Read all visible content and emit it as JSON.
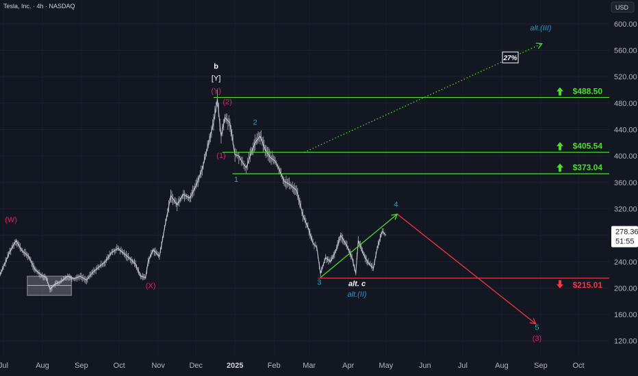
{
  "header": {
    "symbol_title": "Tesla, Inc. · 4h · NASDAQ",
    "currency_badge": "USD"
  },
  "colors": {
    "background": "#131722",
    "candle": "#d1d4dc",
    "level_green": "#4cdd2c",
    "level_red": "#f23645",
    "wave_magenta": "#e91e63",
    "wave_teal": "#26a6bd",
    "wave_white": "#ffffff",
    "alt_blue": "#2f96c8"
  },
  "price_tag": {
    "price": "278.36",
    "countdown": "51:55",
    "value": 278.36
  },
  "percent_box": "27%",
  "chart_data": {
    "type": "line",
    "title": "",
    "y_axis": {
      "ylim": [
        98,
        636
      ],
      "ticks": [
        120,
        160,
        200,
        240,
        280,
        320,
        360,
        400,
        440,
        480,
        520,
        560,
        600
      ],
      "tick_labels": [
        "120.00",
        "160.00",
        "200.00",
        "240.00",
        "",
        "320.00",
        "360.00",
        "400.00",
        "440.00",
        "480.00",
        "520.00",
        "560.00",
        "600.00"
      ]
    },
    "x_axis": {
      "xlim": [
        "2024-07-01",
        "2025-10-20"
      ],
      "ticks": [
        {
          "date": "2024-07-01",
          "label": "Jul",
          "bold": false
        },
        {
          "date": "2024-08-01",
          "label": "Aug",
          "bold": false
        },
        {
          "date": "2024-09-01",
          "label": "Sep",
          "bold": false
        },
        {
          "date": "2024-10-01",
          "label": "Oct",
          "bold": false
        },
        {
          "date": "2024-11-01",
          "label": "Nov",
          "bold": false
        },
        {
          "date": "2024-12-01",
          "label": "Dec",
          "bold": false
        },
        {
          "date": "2025-01-01",
          "label": "2025",
          "bold": true
        },
        {
          "date": "2025-02-01",
          "label": "Feb",
          "bold": false
        },
        {
          "date": "2025-03-01",
          "label": "Mar",
          "bold": false
        },
        {
          "date": "2025-04-01",
          "label": "Apr",
          "bold": false
        },
        {
          "date": "2025-05-01",
          "label": "May",
          "bold": false
        },
        {
          "date": "2025-06-01",
          "label": "Jun",
          "bold": false
        },
        {
          "date": "2025-07-01",
          "label": "Jul",
          "bold": false
        },
        {
          "date": "2025-08-01",
          "label": "Aug",
          "bold": false
        },
        {
          "date": "2025-09-01",
          "label": "Sep",
          "bold": false
        },
        {
          "date": "2025-10-01",
          "label": "Oct",
          "bold": false
        }
      ]
    },
    "price_series": {
      "name": "",
      "points": [
        [
          "2024-06-23",
          196
        ],
        [
          "2024-07-01",
          232
        ],
        [
          "2024-07-06",
          255
        ],
        [
          "2024-07-11",
          272
        ],
        [
          "2024-07-16",
          256
        ],
        [
          "2024-07-21",
          248
        ],
        [
          "2024-07-26",
          228
        ],
        [
          "2024-07-31",
          220
        ],
        [
          "2024-08-04",
          216
        ],
        [
          "2024-08-07",
          198
        ],
        [
          "2024-08-11",
          206
        ],
        [
          "2024-08-16",
          210
        ],
        [
          "2024-08-21",
          218
        ],
        [
          "2024-08-26",
          214
        ],
        [
          "2024-08-31",
          218
        ],
        [
          "2024-09-05",
          212
        ],
        [
          "2024-09-10",
          224
        ],
        [
          "2024-09-15",
          232
        ],
        [
          "2024-09-20",
          240
        ],
        [
          "2024-09-25",
          254
        ],
        [
          "2024-09-30",
          260
        ],
        [
          "2024-10-05",
          252
        ],
        [
          "2024-10-10",
          244
        ],
        [
          "2024-10-14",
          236
        ],
        [
          "2024-10-18",
          218
        ],
        [
          "2024-10-22",
          216
        ],
        [
          "2024-10-24",
          240
        ],
        [
          "2024-10-28",
          258
        ],
        [
          "2024-11-02",
          248
        ],
        [
          "2024-11-06",
          290
        ],
        [
          "2024-11-11",
          340
        ],
        [
          "2024-11-16",
          326
        ],
        [
          "2024-11-21",
          342
        ],
        [
          "2024-11-26",
          336
        ],
        [
          "2024-12-01",
          355
        ],
        [
          "2024-12-06",
          380
        ],
        [
          "2024-12-11",
          420
        ],
        [
          "2024-12-15",
          450
        ],
        [
          "2024-12-18",
          486
        ],
        [
          "2024-12-21",
          430
        ],
        [
          "2024-12-24",
          458
        ],
        [
          "2024-12-28",
          450
        ],
        [
          "2025-01-01",
          402
        ],
        [
          "2025-01-04",
          400
        ],
        [
          "2025-01-07",
          390
        ],
        [
          "2025-01-10",
          382
        ],
        [
          "2025-01-13",
          400
        ],
        [
          "2025-01-17",
          420
        ],
        [
          "2025-01-21",
          430
        ],
        [
          "2025-01-25",
          410
        ],
        [
          "2025-01-29",
          398
        ],
        [
          "2025-02-02",
          392
        ],
        [
          "2025-02-05",
          380
        ],
        [
          "2025-02-09",
          362
        ],
        [
          "2025-02-14",
          356
        ],
        [
          "2025-02-19",
          348
        ],
        [
          "2025-02-24",
          310
        ],
        [
          "2025-02-28",
          292
        ],
        [
          "2025-03-04",
          268
        ],
        [
          "2025-03-07",
          262
        ],
        [
          "2025-03-10",
          222
        ],
        [
          "2025-03-14",
          246
        ],
        [
          "2025-03-18",
          240
        ],
        [
          "2025-03-22",
          256
        ],
        [
          "2025-03-26",
          280
        ],
        [
          "2025-03-31",
          264
        ],
        [
          "2025-04-04",
          246
        ],
        [
          "2025-04-07",
          222
        ],
        [
          "2025-04-09",
          272
        ],
        [
          "2025-04-13",
          252
        ],
        [
          "2025-04-17",
          238
        ],
        [
          "2025-04-21",
          230
        ],
        [
          "2025-04-24",
          260
        ],
        [
          "2025-04-28",
          286
        ],
        [
          "2025-05-01",
          280
        ]
      ]
    },
    "horizontal_levels": [
      {
        "label": "$488.50",
        "value": 488.5,
        "direction": "up",
        "color": "#4cdd2c",
        "from": "2024-12-15"
      },
      {
        "label": "$405.54",
        "value": 405.54,
        "direction": "up",
        "color": "#4cdd2c",
        "from": "2024-12-22"
      },
      {
        "label": "$373.04",
        "value": 373.04,
        "direction": "up",
        "color": "#4cdd2c",
        "from": "2024-12-30"
      },
      {
        "label": "$215.01",
        "value": 215.01,
        "direction": "down",
        "color": "#f23645",
        "from": "2025-03-08"
      }
    ],
    "trend_lines": [
      {
        "from": [
          "2025-03-10",
          216
        ],
        "to": [
          "2025-05-10",
          312
        ],
        "color": "#4cdd2c",
        "style": "solid",
        "arrow": true
      },
      {
        "from": [
          "2025-05-10",
          312
        ],
        "to": [
          "2025-08-28",
          146
        ],
        "color": "#f23645",
        "style": "solid",
        "arrow": true
      },
      {
        "from": [
          "2025-02-25",
          405.5
        ],
        "to": [
          "2025-09-02",
          570
        ],
        "color": "#4cdd2c",
        "style": "dotted",
        "arrow": true
      }
    ],
    "boxes": [
      {
        "from": "2024-07-20",
        "to": "2024-08-24",
        "y_top": 218,
        "y_bottom": 189,
        "mid": 204
      }
    ],
    "wave_labels": [
      {
        "text": "(W)",
        "date": "2024-07-07",
        "price": 300,
        "color": "#e91e63",
        "style": "normal"
      },
      {
        "text": "(X)",
        "date": "2024-10-26",
        "price": 200,
        "color": "#e91e63",
        "style": "normal"
      },
      {
        "text": "b",
        "date": "2024-12-17",
        "price": 532,
        "color": "#ffffff",
        "style": "normal"
      },
      {
        "text": "[Y]",
        "date": "2024-12-17",
        "price": 514,
        "color": "#ffffff",
        "style": "normal"
      },
      {
        "text": "(Y)",
        "date": "2024-12-17",
        "price": 495,
        "color": "#e91e63",
        "style": "normal"
      },
      {
        "text": "(2)",
        "date": "2024-12-26",
        "price": 478,
        "color": "#e91e63",
        "style": "normal"
      },
      {
        "text": "(1)",
        "date": "2024-12-21",
        "price": 397,
        "color": "#e91e63",
        "style": "normal"
      },
      {
        "text": "2",
        "date": "2025-01-17",
        "price": 447,
        "color": "#26a6bd",
        "style": "normal"
      },
      {
        "text": "1",
        "date": "2025-01-02",
        "price": 361,
        "color": "#26a6bd",
        "style": "normal"
      },
      {
        "text": "3",
        "date": "2025-03-09",
        "price": 205,
        "color": "#26a6bd",
        "style": "normal"
      },
      {
        "text": "alt. c",
        "date": "2025-04-08",
        "price": 203,
        "color": "#ffffff",
        "style": "italic"
      },
      {
        "text": "alt.(II)",
        "date": "2025-04-08",
        "price": 187,
        "color": "#2f96c8",
        "style": "italic"
      },
      {
        "text": "4",
        "date": "2025-05-09",
        "price": 323,
        "color": "#26a6bd",
        "style": "normal"
      },
      {
        "text": "5",
        "date": "2025-08-29",
        "price": 137,
        "color": "#26a6bd",
        "style": "normal"
      },
      {
        "text": "(3)",
        "date": "2025-08-29",
        "price": 120,
        "color": "#e91e63",
        "style": "normal"
      },
      {
        "text": "alt.(III)",
        "date": "2025-09-01",
        "price": 590,
        "color": "#2f96c8",
        "style": "italic"
      }
    ]
  }
}
